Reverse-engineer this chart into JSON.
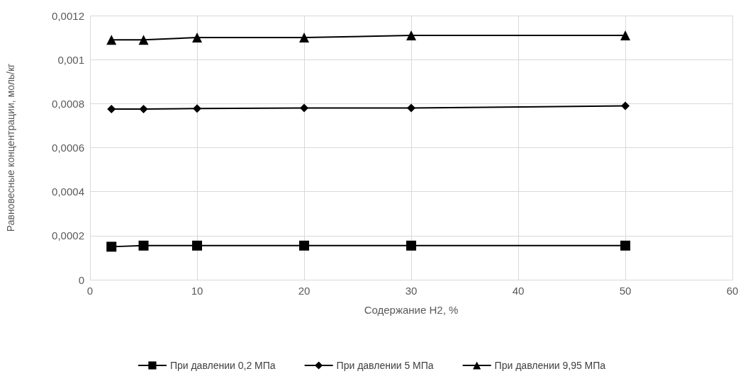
{
  "chart_data": {
    "type": "line",
    "xlabel": "Содержание H2, %",
    "ylabel": "Равновесные концентрации, моль/кг",
    "x": [
      2,
      5,
      10,
      20,
      30,
      50
    ],
    "series": [
      {
        "name": "При давлении 0,2 МПа",
        "color": "#000000",
        "marker": "square",
        "values": [
          0.00015,
          0.000155,
          0.000155,
          0.000155,
          0.000155,
          0.000155
        ]
      },
      {
        "name": "При давлении 5 МПа",
        "color": "#000000",
        "marker": "diamond",
        "values": [
          0.000775,
          0.000775,
          0.000778,
          0.00078,
          0.00078,
          0.00079
        ]
      },
      {
        "name": "При давлении 9,95 МПа",
        "color": "#000000",
        "marker": "triangle",
        "values": [
          0.00109,
          0.00109,
          0.0011,
          0.0011,
          0.00111,
          0.00111
        ]
      }
    ],
    "xlim": [
      0,
      60
    ],
    "xticks": [
      0,
      10,
      20,
      30,
      40,
      50,
      60
    ],
    "ylim": [
      0,
      0.0012
    ],
    "yticks": [
      0,
      {
        "value": 0.0002,
        "label": "0,0002"
      },
      {
        "value": 0.0004,
        "label": "0,0004"
      },
      {
        "value": 0.0006,
        "label": "0,0006"
      },
      {
        "value": 0.0008,
        "label": "0,0008"
      },
      {
        "value": 0.001,
        "label": "0,001"
      },
      {
        "value": 0.0012,
        "label": "0,0012"
      }
    ],
    "grid": true,
    "legend": "bottom",
    "line_style": "solid"
  }
}
